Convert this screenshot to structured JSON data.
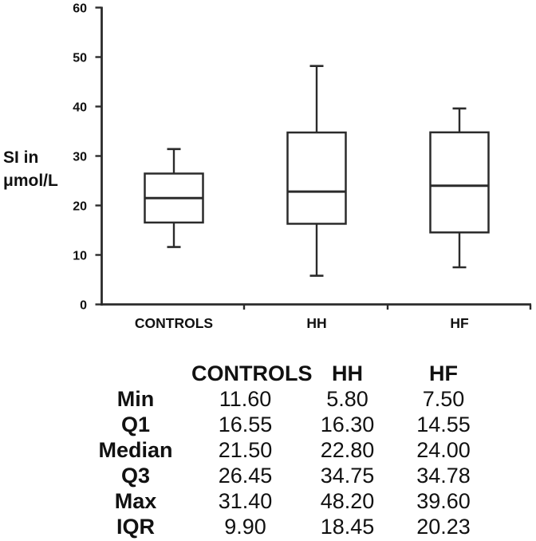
{
  "figure": {
    "background": "#ffffff",
    "line_color": "#2b2b2b",
    "text_color": "#111111"
  },
  "chart_data": {
    "type": "boxplot",
    "title": "",
    "xlabel": "",
    "ylabel": "SI in μmol/L",
    "ylabel_lines": [
      "SI in",
      "μmol/L"
    ],
    "ylim": [
      0,
      60
    ],
    "yticks": [
      "0",
      "10",
      "20",
      "30",
      "40",
      "50",
      "60"
    ],
    "grid": false,
    "legend": null,
    "categories": [
      "CONTROLS",
      "HH",
      "HF"
    ],
    "series": [
      {
        "name": "CONTROLS",
        "min": 11.6,
        "q1": 16.55,
        "median": 21.5,
        "q3": 26.45,
        "max": 31.4,
        "iqr": 9.9
      },
      {
        "name": "HH",
        "min": 5.8,
        "q1": 16.3,
        "median": 22.8,
        "q3": 34.75,
        "max": 48.2,
        "iqr": 18.45
      },
      {
        "name": "HF",
        "min": 7.5,
        "q1": 14.55,
        "median": 24.0,
        "q3": 34.78,
        "max": 39.6,
        "iqr": 20.23
      }
    ]
  },
  "table": {
    "headers": [
      "CONTROLS",
      "HH",
      "HF"
    ],
    "rows": [
      {
        "label": "Min",
        "values": [
          "11.60",
          "5.80",
          "7.50"
        ]
      },
      {
        "label": "Q1",
        "values": [
          "16.55",
          "16.30",
          "14.55"
        ]
      },
      {
        "label": "Median",
        "values": [
          "21.50",
          "22.80",
          "24.00"
        ]
      },
      {
        "label": "Q3",
        "values": [
          "26.45",
          "34.75",
          "34.78"
        ]
      },
      {
        "label": "Max",
        "values": [
          "31.40",
          "48.20",
          "39.60"
        ]
      },
      {
        "label": "IQR",
        "values": [
          "9.90",
          "18.45",
          "20.23"
        ]
      }
    ]
  }
}
